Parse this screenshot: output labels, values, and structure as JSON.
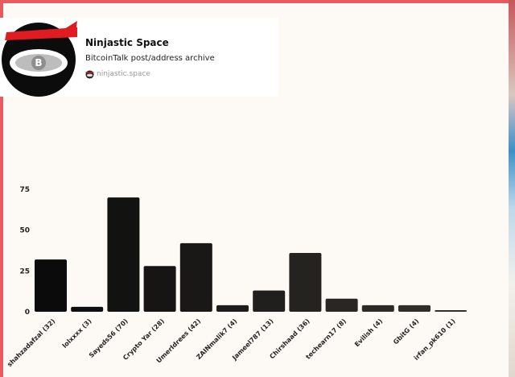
{
  "card": {
    "title": "Ninjastic Space",
    "description": "BitcoinTalk post/address archive",
    "site": "ninjastic.space",
    "logo_icon": "ninja-logo-icon",
    "site_icon": "ninja-favicon-icon"
  },
  "colors": {
    "page_border": "#e85a5e",
    "background": "#fdfaf5",
    "bar_darkest": "#0b0b0b",
    "bar_lightest": "#34302c",
    "headband": "#e01b22"
  },
  "chart_data": {
    "type": "bar",
    "title": "",
    "xlabel": "",
    "ylabel": "",
    "categories": [
      "shahzadafzal (32)",
      "lolxxxx (3)",
      "Sayeds56 (70)",
      "Crypto Yar (28)",
      "UmerIdrees (42)",
      "ZAINmalik7 (4)",
      "Jameel787 (13)",
      "Chirshaad (36)",
      "techearn17 (8)",
      "Evilish (4)",
      "GbitG (4)",
      "irfan_pk610 (1)"
    ],
    "values": [
      32,
      3,
      70,
      28,
      42,
      4,
      13,
      36,
      8,
      4,
      4,
      1
    ],
    "ylim": [
      0,
      75
    ],
    "yticks": [
      0,
      25,
      50,
      75
    ],
    "grid": false,
    "legend": "none"
  }
}
